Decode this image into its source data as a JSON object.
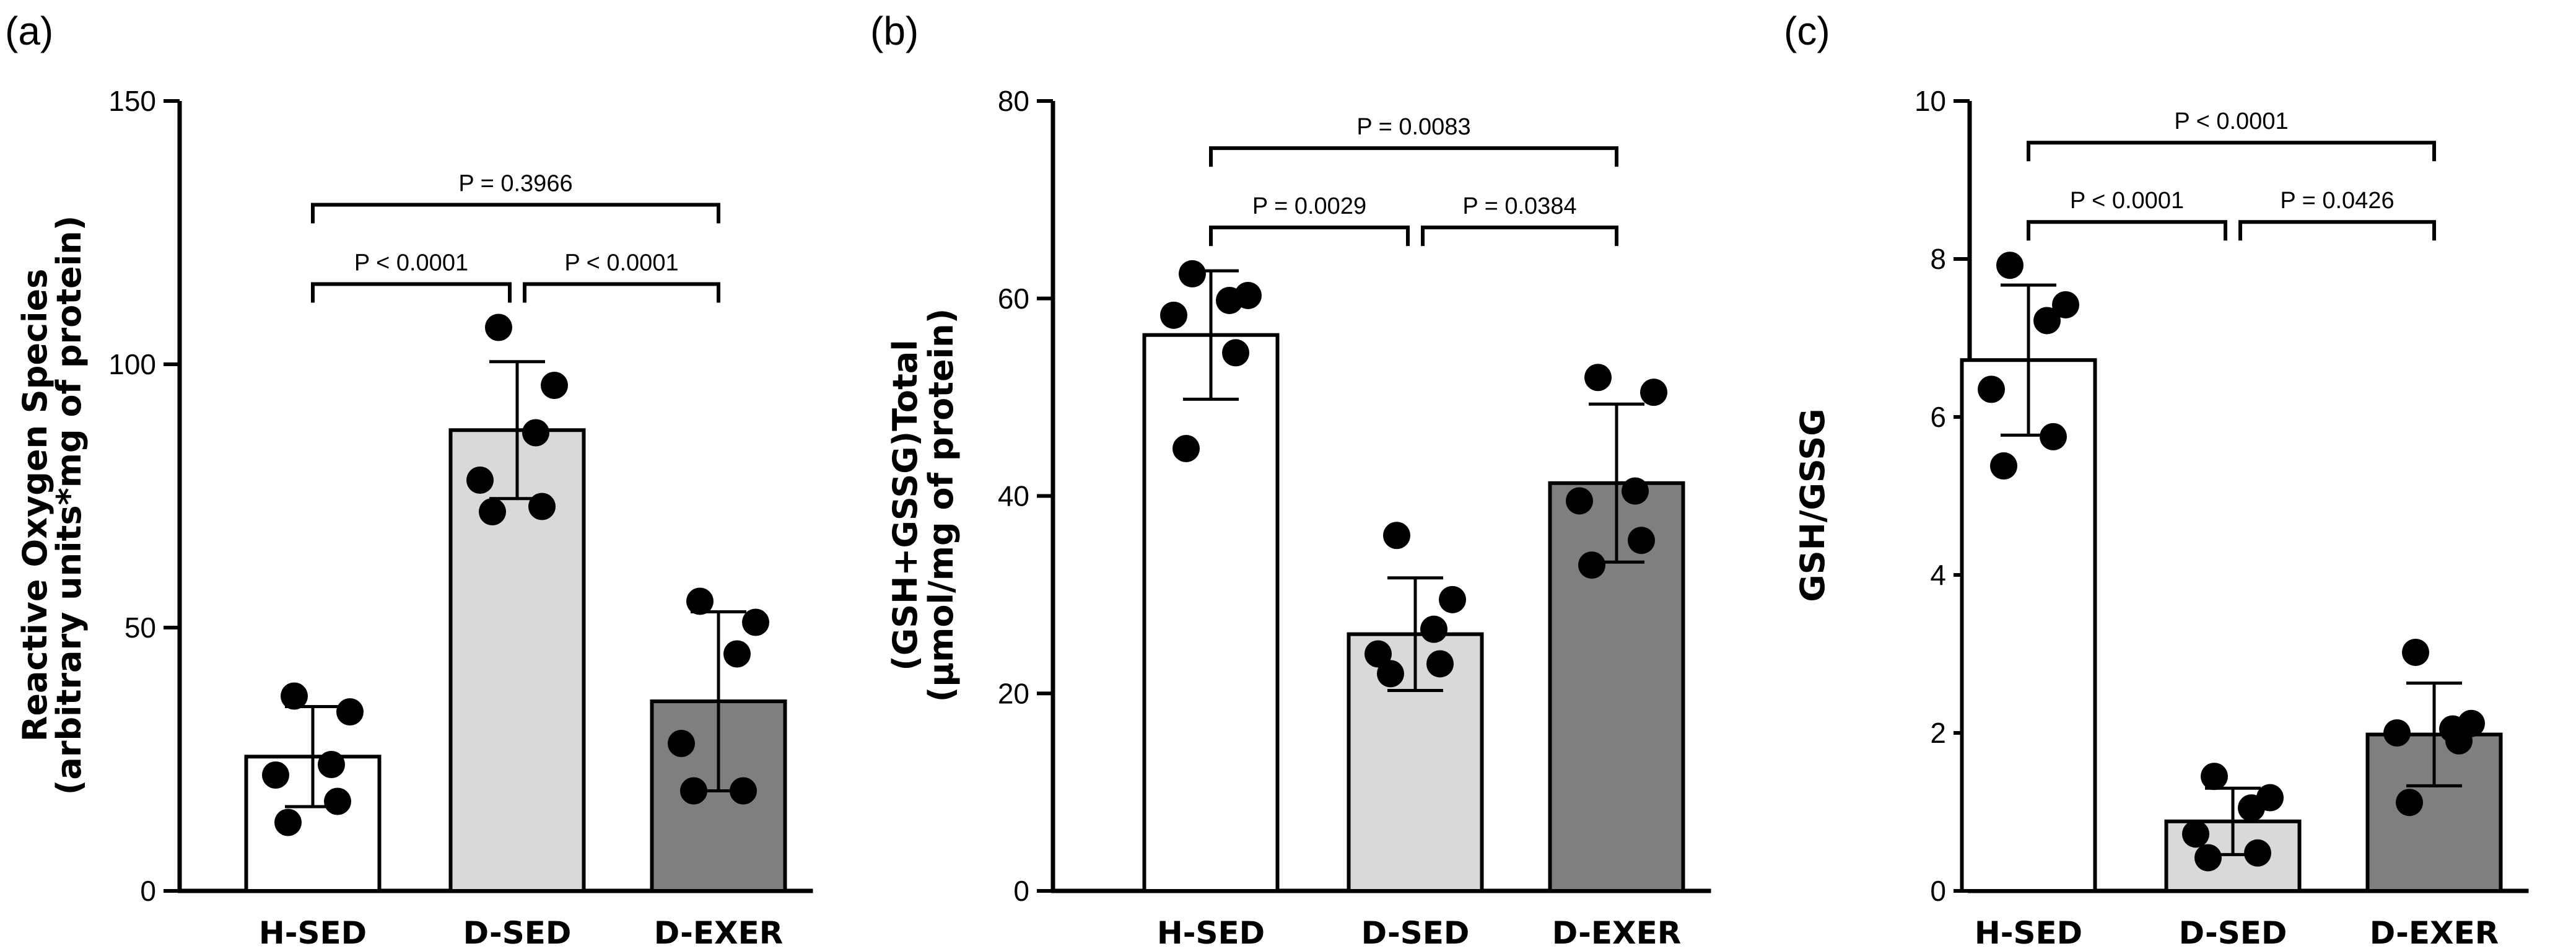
{
  "chart_data": [
    {
      "type": "bar",
      "panel_label": "(a)",
      "ylabel_lines": [
        "Reactive Oxygen Species",
        "(arbitrary units*mg of protein)"
      ],
      "ylim": [
        0,
        150
      ],
      "yticks": [
        0,
        50,
        100,
        150
      ],
      "categories": [
        "H-SED",
        "D-SED",
        "D-EXER"
      ],
      "colors": [
        "#ffffff",
        "#d9d9d9",
        "#7f7f7f"
      ],
      "values": [
        25.5,
        87.5,
        36
      ],
      "sd": [
        9.5,
        13,
        17
      ],
      "points": [
        [
          37,
          34,
          24,
          22,
          17,
          13
        ],
        [
          107,
          96,
          87,
          78,
          73,
          72
        ],
        [
          55,
          51,
          45,
          28,
          19,
          19
        ]
      ],
      "comparisons": [
        {
          "from": 0,
          "to": 1,
          "label": "P < 0.0001",
          "level": 1
        },
        {
          "from": 1,
          "to": 2,
          "label": "P < 0.0001",
          "level": 1
        },
        {
          "from": 0,
          "to": 2,
          "label": "P = 0.3966",
          "level": 2
        }
      ]
    },
    {
      "type": "bar",
      "panel_label": "(b)",
      "ylabel_lines": [
        "(GSH+GSSG)Total",
        "(µmol/mg of protein)"
      ],
      "ylim": [
        0,
        80
      ],
      "yticks": [
        0,
        20,
        40,
        60,
        80
      ],
      "categories": [
        "H-SED",
        "D-SED",
        "D-EXER"
      ],
      "colors": [
        "#ffffff",
        "#d9d9d9",
        "#7f7f7f"
      ],
      "values": [
        56.3,
        26,
        41.3
      ],
      "sd": [
        6.5,
        5.7,
        8
      ],
      "points": [
        [
          62.5,
          60.3,
          59.8,
          58.3,
          54.5,
          44.8
        ],
        [
          36,
          29.5,
          26.5,
          24,
          23,
          22
        ],
        [
          52,
          50.5,
          40.5,
          39.5,
          35.5,
          33
        ]
      ],
      "comparisons": [
        {
          "from": 0,
          "to": 1,
          "label": "P = 0.0029",
          "level": 1
        },
        {
          "from": 1,
          "to": 2,
          "label": "P = 0.0384",
          "level": 1
        },
        {
          "from": 0,
          "to": 2,
          "label": "P = 0.0083",
          "level": 2
        }
      ]
    },
    {
      "type": "bar",
      "panel_label": "(c)",
      "ylabel_lines": [
        "GSH/GSSG"
      ],
      "ylim": [
        0,
        10
      ],
      "yticks": [
        0,
        2,
        4,
        6,
        8,
        10
      ],
      "categories": [
        "H-SED",
        "D-SED",
        "D-EXER"
      ],
      "colors": [
        "#ffffff",
        "#d9d9d9",
        "#7f7f7f"
      ],
      "values": [
        6.72,
        0.88,
        1.98
      ],
      "sd": [
        0.95,
        0.42,
        0.65
      ],
      "points": [
        [
          7.92,
          7.42,
          7.22,
          6.35,
          5.75,
          5.38
        ],
        [
          1.45,
          1.18,
          1.05,
          0.72,
          0.48,
          0.42
        ],
        [
          3.02,
          2.12,
          2.05,
          2.0,
          1.9,
          1.12
        ]
      ],
      "comparisons": [
        {
          "from": 0,
          "to": 1,
          "label": "P < 0.0001",
          "level": 1
        },
        {
          "from": 1,
          "to": 2,
          "label": "P = 0.0426",
          "level": 1
        },
        {
          "from": 0,
          "to": 2,
          "label": "P < 0.0001",
          "level": 2
        }
      ]
    }
  ]
}
